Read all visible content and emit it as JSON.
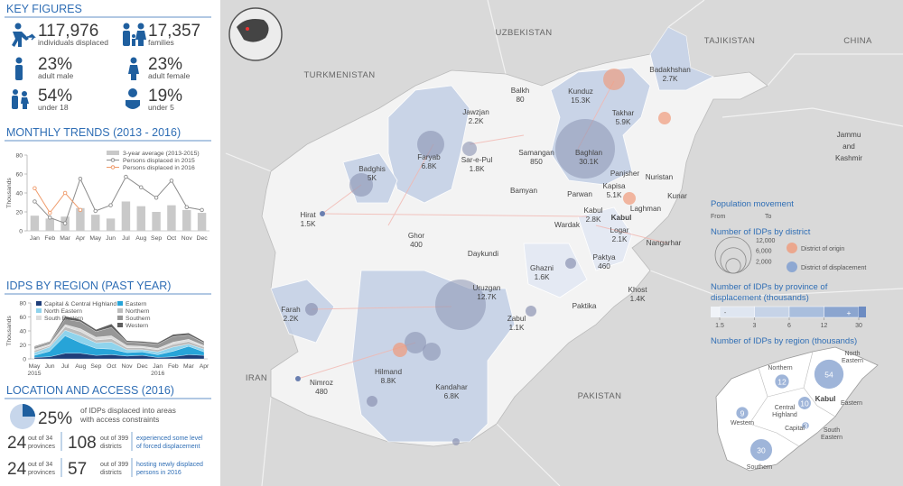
{
  "key_figures": {
    "title": "KEY FIGURES",
    "items": [
      {
        "value": "117,976",
        "label": "individuals displaced"
      },
      {
        "value": "17,357",
        "label": "families"
      },
      {
        "value": "23%",
        "label": "adult male"
      },
      {
        "value": "23%",
        "label": "adult female"
      },
      {
        "value": "54%",
        "label": "under 18"
      },
      {
        "value": "19%",
        "label": "under 5"
      }
    ]
  },
  "monthly_trends": {
    "title": "MONTHLY TRENDS (2013 - 2016)",
    "chart_data": {
      "type": "combo",
      "y_label": "Thousands",
      "categories": [
        "Jan",
        "Feb",
        "Mar",
        "Apr",
        "May",
        "Jun",
        "Jul",
        "Aug",
        "Sep",
        "Oct",
        "Nov",
        "Dec"
      ],
      "ylim": [
        0,
        80
      ],
      "yticks": [
        0,
        20,
        40,
        60,
        80
      ],
      "series": [
        {
          "name": "3-year average (2013-2015)",
          "type": "bar",
          "color": "#c9c9c9",
          "values": [
            16,
            13,
            15,
            24,
            17,
            13,
            31,
            26,
            20,
            27,
            22,
            19
          ]
        },
        {
          "name": "Persons displaced in 2015",
          "type": "line",
          "color": "#8c8c8c",
          "values": [
            31,
            14,
            8,
            55,
            21,
            27,
            57,
            46,
            35,
            53,
            25,
            22
          ]
        },
        {
          "name": "Persons displaced in 2016",
          "type": "line",
          "color": "#ef9a6a",
          "values": [
            45,
            19,
            40,
            22,
            null,
            null,
            null,
            null,
            null,
            null,
            null,
            null
          ]
        }
      ]
    }
  },
  "idps_by_region": {
    "title": "IDPS BY REGION (PAST YEAR)",
    "chart_data": {
      "type": "area",
      "stacked": true,
      "y_label": "Thousands",
      "categories": [
        "May",
        "Jun",
        "Jul",
        "Aug",
        "Sep",
        "Oct",
        "Nov",
        "Dec",
        "Jan",
        "Feb",
        "Mar",
        "Apr"
      ],
      "x_sublabels": [
        "2015",
        null,
        null,
        null,
        null,
        null,
        null,
        null,
        "2016",
        null,
        null,
        null
      ],
      "ylim": [
        0,
        80
      ],
      "yticks": [
        0,
        20,
        40,
        60,
        80
      ],
      "series": [
        {
          "name": "Capital & Central Highland",
          "color": "#1f3f7a",
          "values": [
            2,
            3,
            8,
            8,
            5,
            6,
            4,
            5,
            2,
            3,
            6,
            5
          ]
        },
        {
          "name": "Eastern",
          "color": "#27a4d8",
          "values": [
            3,
            8,
            25,
            15,
            10,
            8,
            5,
            5,
            4,
            8,
            12,
            5
          ]
        },
        {
          "name": "North Eastern",
          "color": "#8fd3ec",
          "values": [
            4,
            6,
            8,
            10,
            8,
            10,
            4,
            3,
            4,
            6,
            3,
            4
          ]
        },
        {
          "name": "Northern",
          "color": "#bdbdbd",
          "values": [
            3,
            2,
            5,
            6,
            4,
            5,
            3,
            3,
            3,
            4,
            4,
            3
          ]
        },
        {
          "name": "South Eastern",
          "color": "#dcdcdc",
          "values": [
            2,
            2,
            3,
            4,
            4,
            4,
            3,
            2,
            2,
            3,
            3,
            2
          ]
        },
        {
          "name": "Southern",
          "color": "#979797",
          "values": [
            3,
            3,
            8,
            10,
            8,
            12,
            5,
            5,
            6,
            8,
            6,
            4
          ]
        },
        {
          "name": "Western",
          "color": "#5f5f5f",
          "values": [
            1,
            1,
            4,
            3,
            3,
            5,
            2,
            2,
            2,
            3,
            3,
            2
          ]
        }
      ]
    }
  },
  "location_access": {
    "title": "LOCATION AND ACCESS (2016)",
    "share": {
      "value": 25,
      "value_label": "25%",
      "text": [
        "of IDPs displaced into areas",
        "with access constraints"
      ]
    },
    "rows": [
      {
        "provinces": "24",
        "provinces_of": [
          "out of 34",
          "provinces"
        ],
        "districts": "108",
        "districts_of": [
          "out of 399",
          "districts"
        ],
        "text": [
          "experienced some level",
          "of forced displacement"
        ]
      },
      {
        "provinces": "24",
        "provinces_of": [
          "out of 34",
          "provinces"
        ],
        "districts": "57",
        "districts_of": [
          "out of 399",
          "districts"
        ],
        "text": [
          "hosting newly displaced",
          "persons in 2016"
        ]
      }
    ]
  },
  "map": {
    "countries": [
      [
        "UZBEKISTAN"
      ],
      [
        "TAJIKISTAN"
      ],
      [
        "CHINA"
      ],
      [
        "TURKMENISTAN"
      ],
      [
        "Jammu",
        "and",
        "Kashmir"
      ],
      [
        "IRAN"
      ],
      [
        "PAKISTAN"
      ]
    ],
    "capital": "Kabul",
    "provinces": [
      {
        "name": "Jawzjan",
        "value": "2.2K"
      },
      {
        "name": "Balkh",
        "value": "80"
      },
      {
        "name": "Kunduz",
        "value": "15.3K"
      },
      {
        "name": "Badakhshan",
        "value": "2.7K"
      },
      {
        "name": "Takhar",
        "value": "5.9K"
      },
      {
        "name": "Faryab",
        "value": "6.8K"
      },
      {
        "name": "Sar-e-Pul",
        "value": "1.8K"
      },
      {
        "name": "Samangan",
        "value": "850"
      },
      {
        "name": "Baghlan",
        "value": "30.1K"
      },
      {
        "name": "Badghis",
        "value": "5K"
      },
      {
        "name": "Panjsher"
      },
      {
        "name": "Nuristan"
      },
      {
        "name": "Kapisa",
        "value": "5.1K"
      },
      {
        "name": "Parwan"
      },
      {
        "name": "Kunar"
      },
      {
        "name": "Hirat",
        "value": "1.5K"
      },
      {
        "name": "Bamyan"
      },
      {
        "name": "Laghman"
      },
      {
        "name": "Wardak"
      },
      {
        "name": "Kabul",
        "value": "2.8K"
      },
      {
        "name": "Logar",
        "value": "2.1K"
      },
      {
        "name": "Nangarhar"
      },
      {
        "name": "Ghor",
        "value": "400"
      },
      {
        "name": "Daykundi"
      },
      {
        "name": "Paktya",
        "value": "460"
      },
      {
        "name": "Ghazni",
        "value": "1.6K"
      },
      {
        "name": "Khost",
        "value": "1.4K"
      },
      {
        "name": "Uruzgan",
        "value": "12.7K"
      },
      {
        "name": "Paktika"
      },
      {
        "name": "Farah",
        "value": "2.2K"
      },
      {
        "name": "Zabul",
        "value": "1.1K"
      },
      {
        "name": "Hilmand",
        "value": "8.8K"
      },
      {
        "name": "Kandahar",
        "value": "6.8K"
      },
      {
        "name": "Nimroz",
        "value": "480"
      }
    ],
    "legend": {
      "movement": {
        "title": "Population movement",
        "from": "From",
        "to": "To"
      },
      "district": {
        "title": "Number of IDPs by district",
        "sizes": [
          {
            "value": 12000,
            "label": "12,000"
          },
          {
            "value": 6000,
            "label": "6,000"
          },
          {
            "value": 2000,
            "label": "2,000"
          }
        ],
        "origin": "District of origin",
        "displacement": "District of displacement"
      },
      "province": {
        "title": [
          "Number of IDPs by province of",
          "displacement (thousands)"
        ],
        "low": "-",
        "high": "+",
        "ticks": [
          1.5,
          3,
          6,
          12,
          30
        ],
        "colors": [
          "#dfe6f1",
          "#c6d3e7",
          "#a9bedd",
          "#8ba5cf"
        ]
      },
      "region": {
        "title": "Number of IDPs by region (thousands)",
        "regions": [
          {
            "name": [
              "North",
              "Eastern"
            ],
            "value": 54
          },
          {
            "name": [
              "Northern"
            ],
            "value": 12
          },
          {
            "name": [
              "Eastern"
            ],
            "value": 10
          },
          {
            "name": [
              "Western"
            ],
            "value": 9
          },
          {
            "name": [
              "South",
              "Eastern"
            ],
            "value": 3
          },
          {
            "name": [
              "Southern"
            ],
            "value": 30
          }
        ],
        "labels": [
          [
            "Kabul"
          ],
          [
            "Central",
            "Highland"
          ],
          [
            "Capital"
          ]
        ]
      }
    }
  }
}
